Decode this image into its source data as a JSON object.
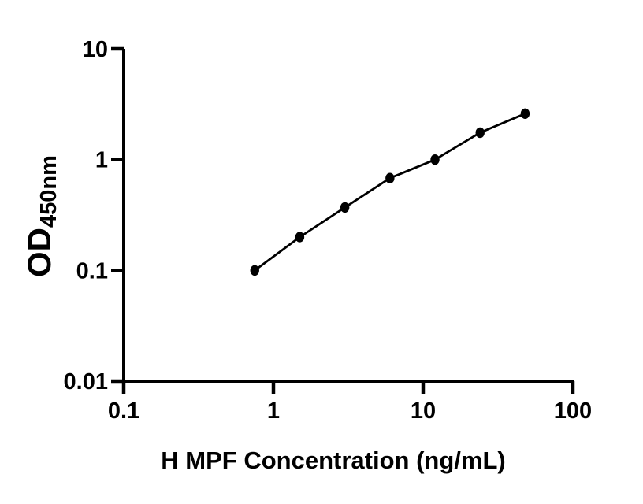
{
  "figure": {
    "background": "#ffffff"
  },
  "chart_data": {
    "type": "scatter",
    "connected_line": true,
    "title": "",
    "xlabel": "H MPF Concentration (ng/mL)",
    "ylabel": "OD450nm",
    "ylabel_parts": {
      "main": "OD",
      "sub": "450nm"
    },
    "x": [
      0.75,
      1.5,
      3,
      6,
      12,
      24,
      48
    ],
    "y": [
      0.1,
      0.2,
      0.37,
      0.68,
      1.0,
      1.75,
      2.6
    ],
    "xscale": "log",
    "yscale": "log",
    "xlim": [
      0.1,
      100
    ],
    "ylim": [
      0.01,
      10
    ],
    "x_ticks": [
      "0.1",
      "1",
      "10",
      "100"
    ],
    "y_ticks": [
      "0.01",
      "0.1",
      "1",
      "10"
    ],
    "grid": false,
    "legend": "none",
    "axis_color": "#000000",
    "line_color": "#000000",
    "marker_color": "#000000"
  }
}
